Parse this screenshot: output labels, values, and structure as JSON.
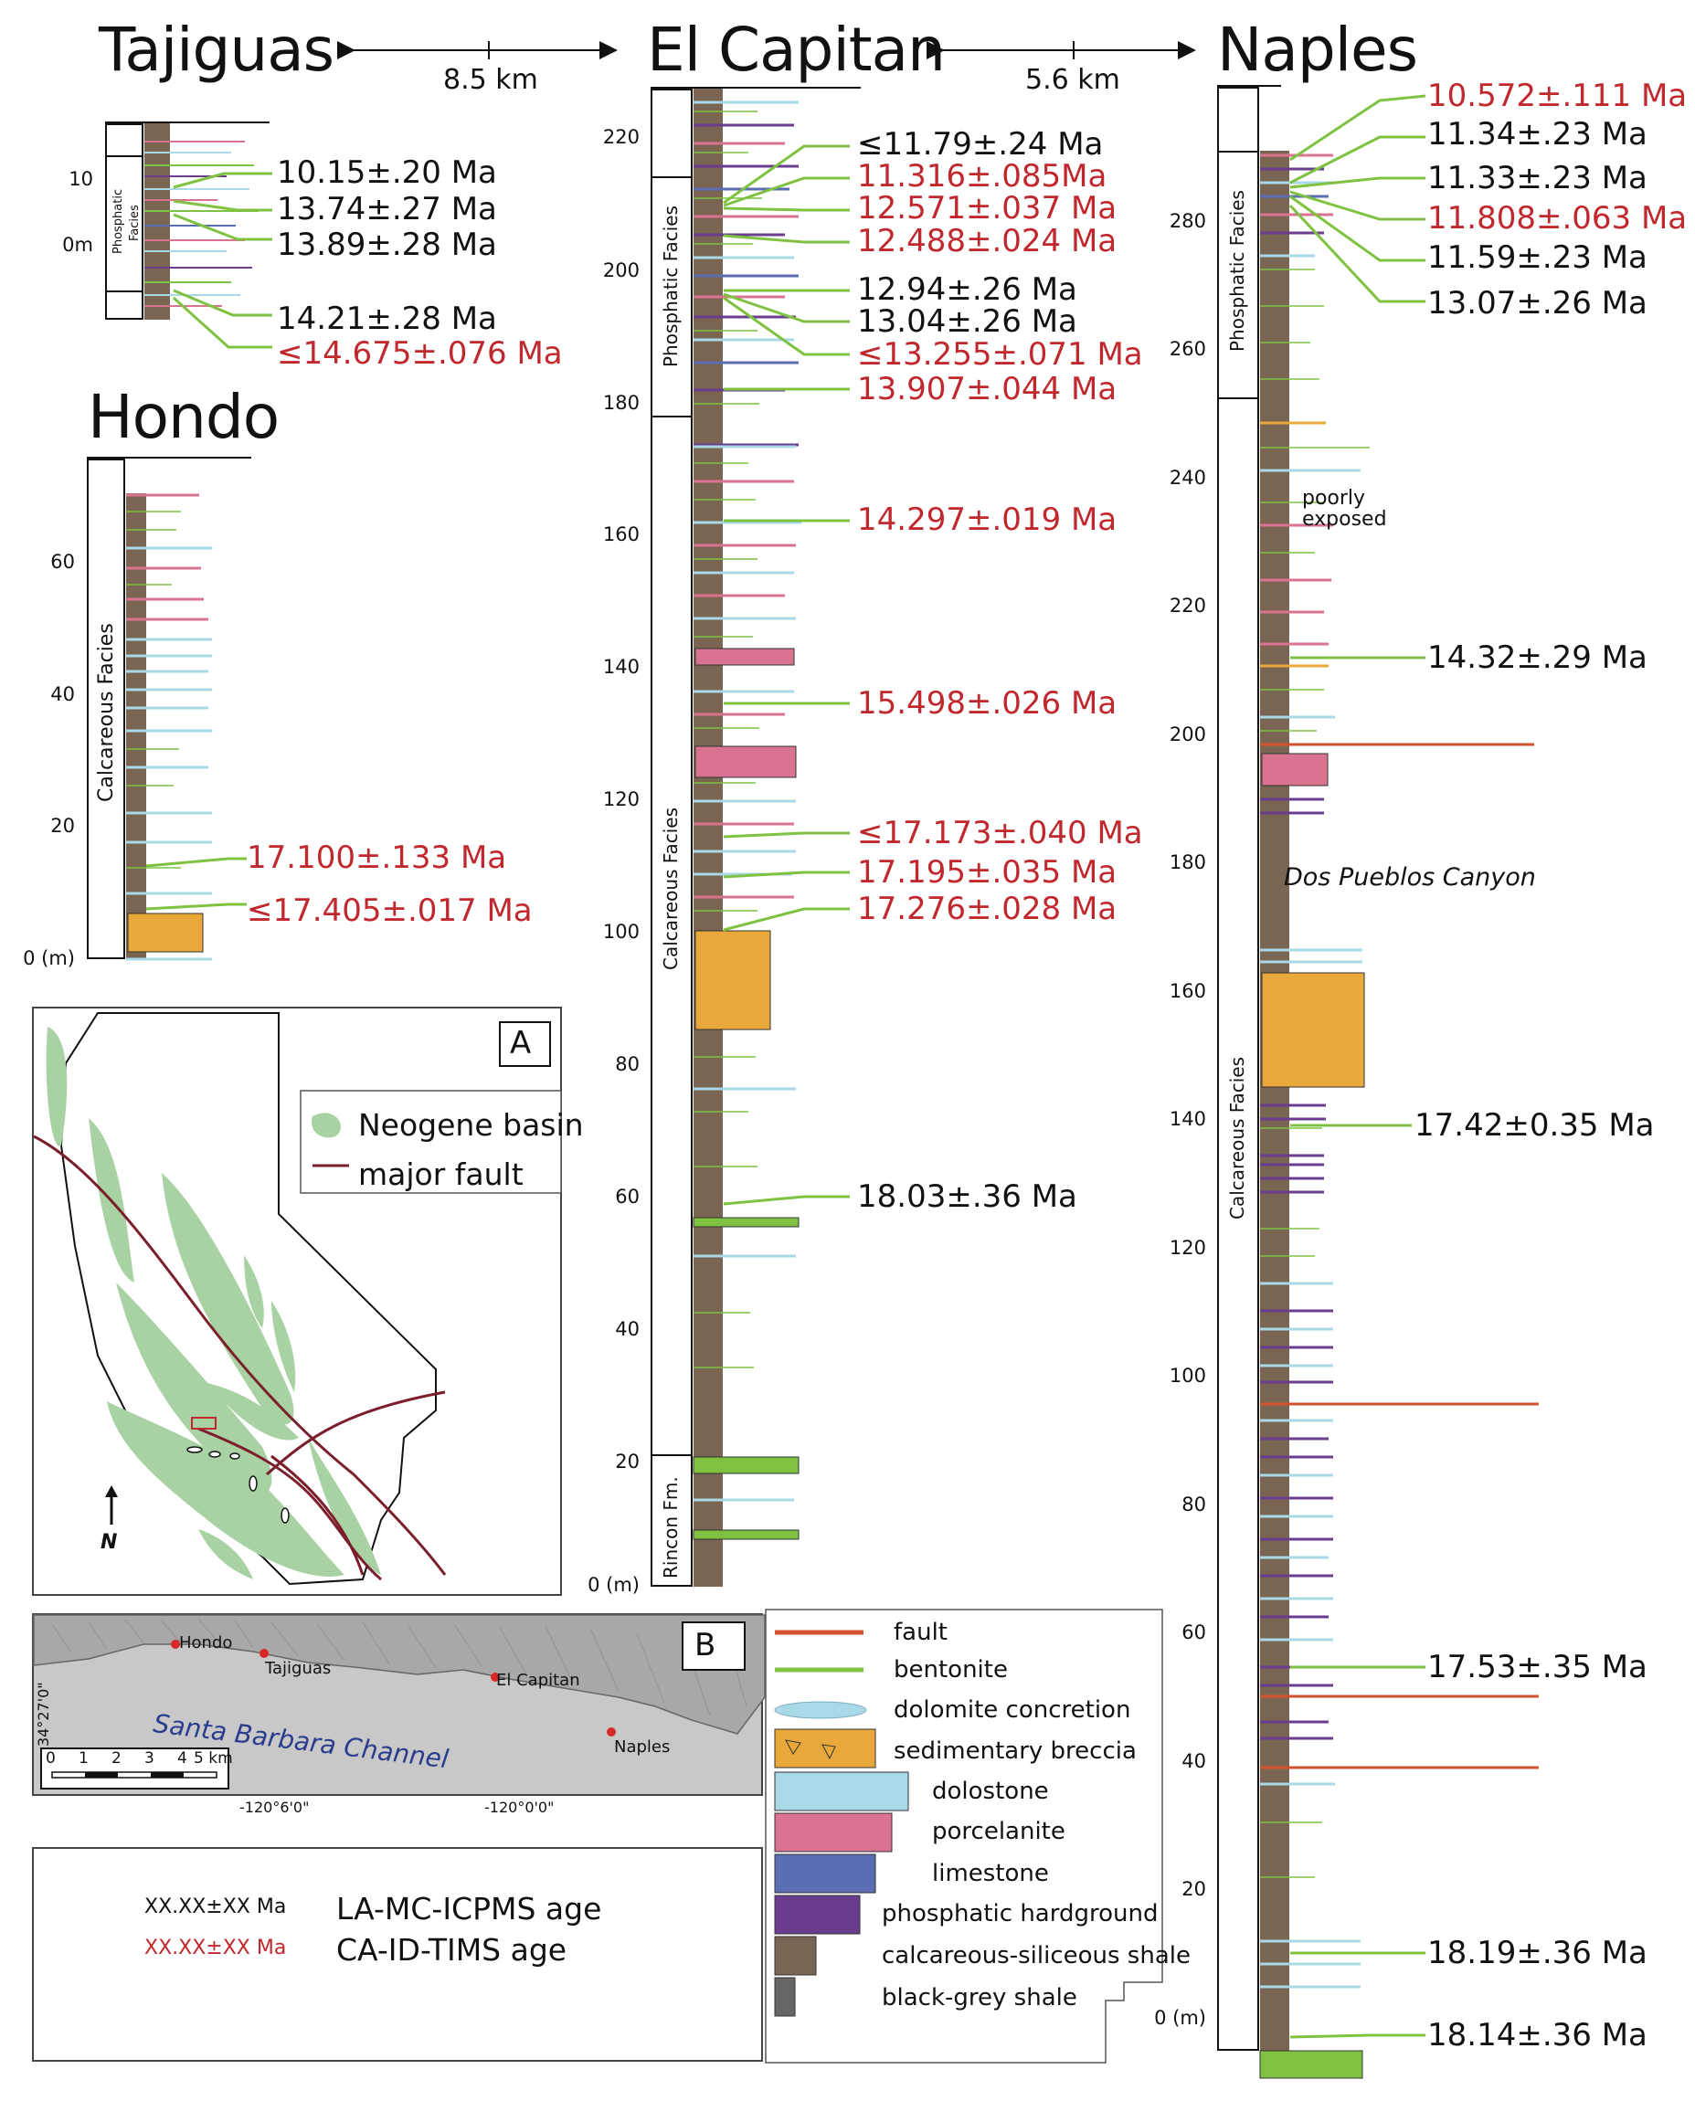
{
  "titles": {
    "tajiguas": "Tajiguas",
    "el_capitan": "El Capitan",
    "naples": "Naples",
    "hondo": "Hondo"
  },
  "distances": {
    "tajiguas_el_capitan": "8.5 km",
    "el_capitan_naples": "5.6 km"
  },
  "facies": {
    "phosphatic": "Phosphatic Facies",
    "calcareous": "Calcareous Facies",
    "rincon": "Rincon Fm.",
    "phosphatic_short_1": "Phosphatic",
    "phosphatic_short_2": "Facies"
  },
  "tajiguas_axis": {
    "t10": "10",
    "t0": "0m"
  },
  "hondo_axis": {
    "t60": "60",
    "t40": "40",
    "t20": "20",
    "t0": "0 (m)"
  },
  "elcap_axis": {
    "t220": "220",
    "t200": "200",
    "t180": "180",
    "t160": "160",
    "t140": "140",
    "t120": "120",
    "t100": "100",
    "t80": "80",
    "t60": "60",
    "t40": "40",
    "t20": "20",
    "t0": "0 (m)"
  },
  "naples_axis": {
    "t280": "280",
    "t260": "260",
    "t240": "240",
    "t220": "220",
    "t200": "200",
    "t180": "180",
    "t160": "160",
    "t140": "140",
    "t120": "120",
    "t100": "100",
    "t80": "80",
    "t60": "60",
    "t40": "40",
    "t20": "20",
    "t0": "0 (m)"
  },
  "tajiguas_ages": [
    "10.15±.20 Ma",
    "13.74±.27 Ma",
    "13.89±.28 Ma",
    "14.21±.28 Ma",
    "≤14.675±.076 Ma"
  ],
  "hondo_ages": [
    "17.100±.133 Ma",
    "≤17.405±.017 Ma"
  ],
  "elcap_ages": [
    "≤11.79±.24 Ma",
    "11.316±.085Ma",
    "12.571±.037 Ma",
    "12.488±.024 Ma",
    "12.94±.26 Ma",
    "13.04±.26 Ma",
    "≤13.255±.071 Ma",
    "13.907±.044 Ma",
    "14.297±.019 Ma",
    "15.498±.026 Ma",
    "≤17.173±.040 Ma",
    "17.195±.035 Ma",
    "17.276±.028 Ma",
    "18.03±.36 Ma"
  ],
  "naples_ages": [
    "10.572±.111 Ma",
    "11.34±.23 Ma",
    "11.33±.23 Ma",
    "11.808±.063 Ma",
    "11.59±.23 Ma",
    "13.07±.26 Ma",
    "14.32±.29 Ma",
    "17.42±0.35 Ma",
    "17.53±.35 Ma",
    "18.19±.36 Ma",
    "18.14±.36 Ma"
  ],
  "naples_notes": {
    "poorly": "poorly",
    "exposed": "exposed",
    "canyon": "Dos Pueblos Canyon"
  },
  "map_a": {
    "label": "A",
    "legend_basin": "Neogene basin",
    "legend_fault": "major fault",
    "north": "N"
  },
  "map_b": {
    "label": "B",
    "hondo": "Hondo",
    "tajiguas": "Tajiguas",
    "el_capitan": "El Capitan",
    "naples": "Naples",
    "channel": "Santa Barbara Channel",
    "lat": "34°27'0\"",
    "lon1": "-120°6'0\"",
    "lon2": "-120°0'0\"",
    "scale_nums": [
      "0",
      "1",
      "2",
      "3",
      "4",
      "5 km"
    ]
  },
  "age_key": {
    "la_sample": "XX.XX±XX Ma",
    "la_label": "LA-MC-ICPMS age",
    "ca_sample": "XX.XX±XX Ma",
    "ca_label": "CA-ID-TIMS age"
  },
  "legend": {
    "fault": "fault",
    "bentonite": "bentonite",
    "dolomite_concretion": "dolomite concretion",
    "breccia": "sedimentary breccia",
    "dolostone": "dolostone",
    "porcelanite": "porcelanite",
    "limestone": "limestone",
    "hardground": "phosphatic hardground",
    "calc_shale": "calcareous-siliceous shale",
    "black_shale": "black-grey shale"
  },
  "colors": {
    "la": "#111111",
    "ca": "#c0282d",
    "bentonite": "#7fc241",
    "fault": "#d2522c",
    "dolomite": "#a9d8e6",
    "breccia": "#e8a83a",
    "porcelanite": "#d9738f",
    "limestone": "#5b6db3",
    "hardground": "#6a3d8f",
    "calc_shale": "#7a6552",
    "black_shale": "#666666",
    "basin": "#a9d2a4",
    "major_fault": "#7a1f2b"
  }
}
